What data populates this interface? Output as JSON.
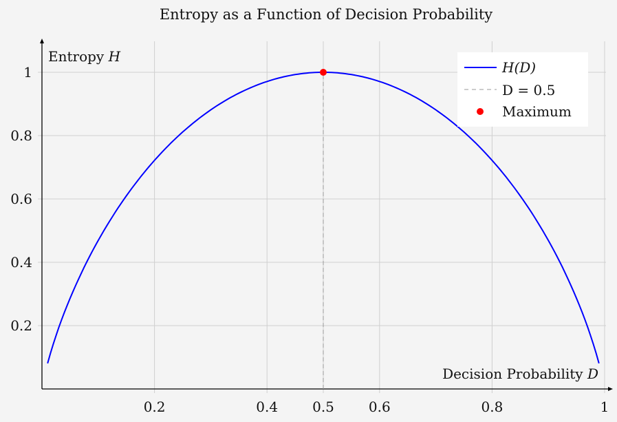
{
  "chart_data": {
    "type": "line",
    "title": "Entropy as a Function of Decision Probability",
    "xlabel": "Decision Probability D",
    "xlabel_text": "Decision Probability ",
    "xlabel_var": "D",
    "ylabel": "Entropy H",
    "ylabel_text": "Entropy ",
    "ylabel_var": "H",
    "xlim": [
      0,
      1
    ],
    "ylim": [
      0,
      1.1
    ],
    "xticks": [
      0.2,
      0.4,
      0.5,
      0.6,
      0.8,
      1
    ],
    "xtick_labels": [
      "0.2",
      "0.4",
      "0.5",
      "0.6",
      "0.8",
      "1"
    ],
    "yticks": [
      0.2,
      0.4,
      0.6,
      0.8,
      1
    ],
    "ytick_labels": [
      "0.2",
      "0.4",
      "0.6",
      "0.8",
      "1"
    ],
    "grid": true,
    "legend_position": "top-right",
    "series": [
      {
        "name": "H(D)",
        "function": "-D*log2(D) - (1-D)*log2(1-D)",
        "domain": [
          0.01,
          0.99
        ],
        "color": "#0000ff",
        "style": "solid"
      },
      {
        "name": "D = 0.5",
        "x": [
          0.5,
          0.5
        ],
        "y": [
          0,
          1
        ],
        "color": "#999999",
        "style": "dashed"
      },
      {
        "name": "Maximum",
        "x": [
          0.5
        ],
        "y": [
          1
        ],
        "color": "#ff0000",
        "style": "marker"
      }
    ],
    "legend": [
      {
        "label": "H(D)"
      },
      {
        "label": "D = 0.5"
      },
      {
        "label": "Maximum"
      }
    ]
  }
}
